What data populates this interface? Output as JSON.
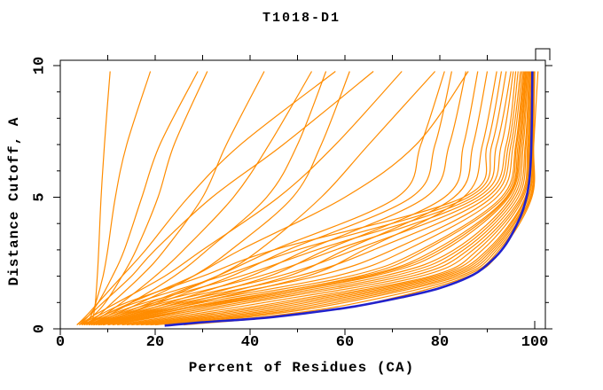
{
  "chart_data": {
    "type": "line",
    "title": "T1018-D1",
    "xlabel": "Percent of Residues (CA)",
    "ylabel": "Distance Cutoff, A",
    "xlim": [
      0,
      102
    ],
    "ylim": [
      0,
      10.2
    ],
    "grid": false,
    "legend": "none",
    "x_major_ticks": [
      0,
      20,
      40,
      60,
      80,
      100
    ],
    "x_tick_labels": [
      "0",
      "20",
      "40",
      "60",
      "80",
      "100"
    ],
    "x_minor_ticks": [
      10,
      30,
      50,
      70,
      90
    ],
    "y_major_ticks": [
      0,
      5,
      10
    ],
    "y_tick_labels": [
      "0",
      "5",
      "10"
    ],
    "y_minor_ticks": [
      1,
      2,
      3,
      4,
      6,
      7,
      8,
      9
    ],
    "colors": {
      "model_curves": "#ff8c00",
      "highlight_curve": "#2222cc",
      "frame": "#000000",
      "background": "#ffffff"
    },
    "y_anchors": [
      0.15,
      0.5,
      1,
      2,
      3,
      5,
      7,
      9.78
    ],
    "model_curves_x": [
      [
        6.5,
        7,
        7.4,
        7.8,
        8.1,
        8.6,
        9.3,
        10.5
      ],
      [
        5,
        6.5,
        7.5,
        9,
        10,
        11.6,
        14,
        19
      ],
      [
        4,
        6,
        8,
        11,
        13.5,
        17.2,
        21,
        29
      ],
      [
        4.5,
        7,
        9.5,
        13,
        16,
        20.6,
        24,
        31
      ],
      [
        5,
        8,
        11,
        17,
        22,
        30,
        35,
        43
      ],
      [
        5.5,
        9,
        13,
        20,
        26,
        36.5,
        44,
        53
      ],
      [
        6,
        10,
        15,
        24,
        31,
        43.5,
        50,
        56
      ],
      [
        6,
        11,
        17,
        28,
        36,
        49,
        55,
        61
      ],
      [
        7,
        13,
        20,
        33,
        42,
        55,
        65,
        79
      ],
      [
        6,
        12,
        19,
        33,
        45,
        71,
        76,
        81
      ],
      [
        6.5,
        13,
        21,
        36,
        48,
        74,
        79,
        82.5
      ],
      [
        7,
        14,
        23,
        40,
        52,
        77,
        82,
        85.5
      ],
      [
        7,
        15,
        25,
        44,
        56,
        81,
        85,
        88
      ],
      [
        8,
        16,
        27,
        48,
        60,
        83,
        87,
        90
      ],
      [
        8,
        17,
        29,
        52,
        64,
        85,
        89,
        92
      ],
      [
        4,
        8,
        14,
        30,
        45,
        85,
        90,
        93
      ],
      [
        4.5,
        9,
        16,
        34,
        50,
        86,
        91,
        94
      ],
      [
        5,
        10,
        18,
        38,
        54,
        87,
        92,
        95
      ],
      [
        5.5,
        11,
        20,
        42,
        58,
        88,
        93,
        95.5
      ],
      [
        6,
        12,
        22,
        46,
        62,
        89,
        94,
        96
      ],
      [
        6.5,
        13,
        24,
        50,
        66,
        90,
        94.5,
        96.5
      ],
      [
        7,
        14,
        26,
        54,
        70,
        91,
        95,
        97
      ],
      [
        7.5,
        15,
        28,
        58,
        73,
        92,
        95.5,
        97.3
      ],
      [
        8,
        16,
        30,
        61,
        76,
        93,
        96,
        97.6
      ],
      [
        8.5,
        17,
        32,
        64,
        79,
        94,
        96.5,
        98
      ],
      [
        9,
        18,
        34,
        66,
        81,
        94.5,
        97,
        98.2
      ],
      [
        10,
        20,
        36,
        68,
        83,
        95,
        97.3,
        98.4
      ],
      [
        11,
        22,
        38,
        70,
        84,
        95.5,
        97.6,
        98.6
      ],
      [
        12,
        24,
        40,
        72,
        85,
        96,
        98,
        98.8
      ],
      [
        13,
        26,
        43,
        74,
        86,
        96.5,
        98.2,
        99
      ],
      [
        14,
        28,
        46,
        76,
        87,
        97,
        98.5,
        99.2
      ],
      [
        15,
        30,
        48,
        78,
        88,
        97.3,
        98.7,
        99.4
      ],
      [
        16,
        32,
        50,
        79,
        89,
        97.6,
        98.9,
        99.5
      ],
      [
        17,
        34,
        52,
        80,
        90,
        98,
        99,
        99.6
      ],
      [
        18,
        36,
        54,
        81,
        90.5,
        98.2,
        99.2,
        99.7
      ],
      [
        19,
        38,
        56,
        82,
        91,
        98.5,
        99.4,
        99.8
      ],
      [
        20,
        40,
        58,
        83,
        91.5,
        98.7,
        99.5,
        99.9
      ],
      [
        22,
        42,
        60,
        84,
        92,
        99,
        99.6,
        100
      ],
      [
        24,
        45,
        63,
        85,
        92.5,
        99.2,
        99.7,
        100
      ],
      [
        26,
        48,
        66,
        86,
        93,
        99.4,
        99.8,
        100.7
      ],
      [
        5,
        9,
        15,
        28,
        38,
        60,
        75,
        86
      ],
      [
        4,
        7,
        12,
        22,
        30,
        46,
        58,
        72
      ],
      [
        3.5,
        6,
        9,
        15,
        20,
        32,
        47,
        66
      ],
      [
        9,
        19,
        33,
        63,
        77,
        93.5,
        96.2,
        97.8
      ],
      [
        10,
        21,
        35,
        65,
        80,
        94.2,
        96.8,
        98.1
      ],
      [
        3.5,
        5.5,
        8,
        13,
        18,
        27,
        38,
        58
      ]
    ],
    "highlight_curve_points": [
      [
        22,
        0.12
      ],
      [
        30,
        0.25
      ],
      [
        42,
        0.4
      ],
      [
        52,
        0.6
      ],
      [
        62,
        0.85
      ],
      [
        72,
        1.2
      ],
      [
        80,
        1.55
      ],
      [
        87,
        2.05
      ],
      [
        91,
        2.6
      ],
      [
        93.5,
        3.1
      ],
      [
        95.5,
        3.7
      ],
      [
        97.5,
        4.5
      ],
      [
        98.7,
        5.4
      ],
      [
        99.2,
        6.5
      ],
      [
        99.4,
        8.0
      ],
      [
        99.5,
        9.78
      ]
    ]
  }
}
